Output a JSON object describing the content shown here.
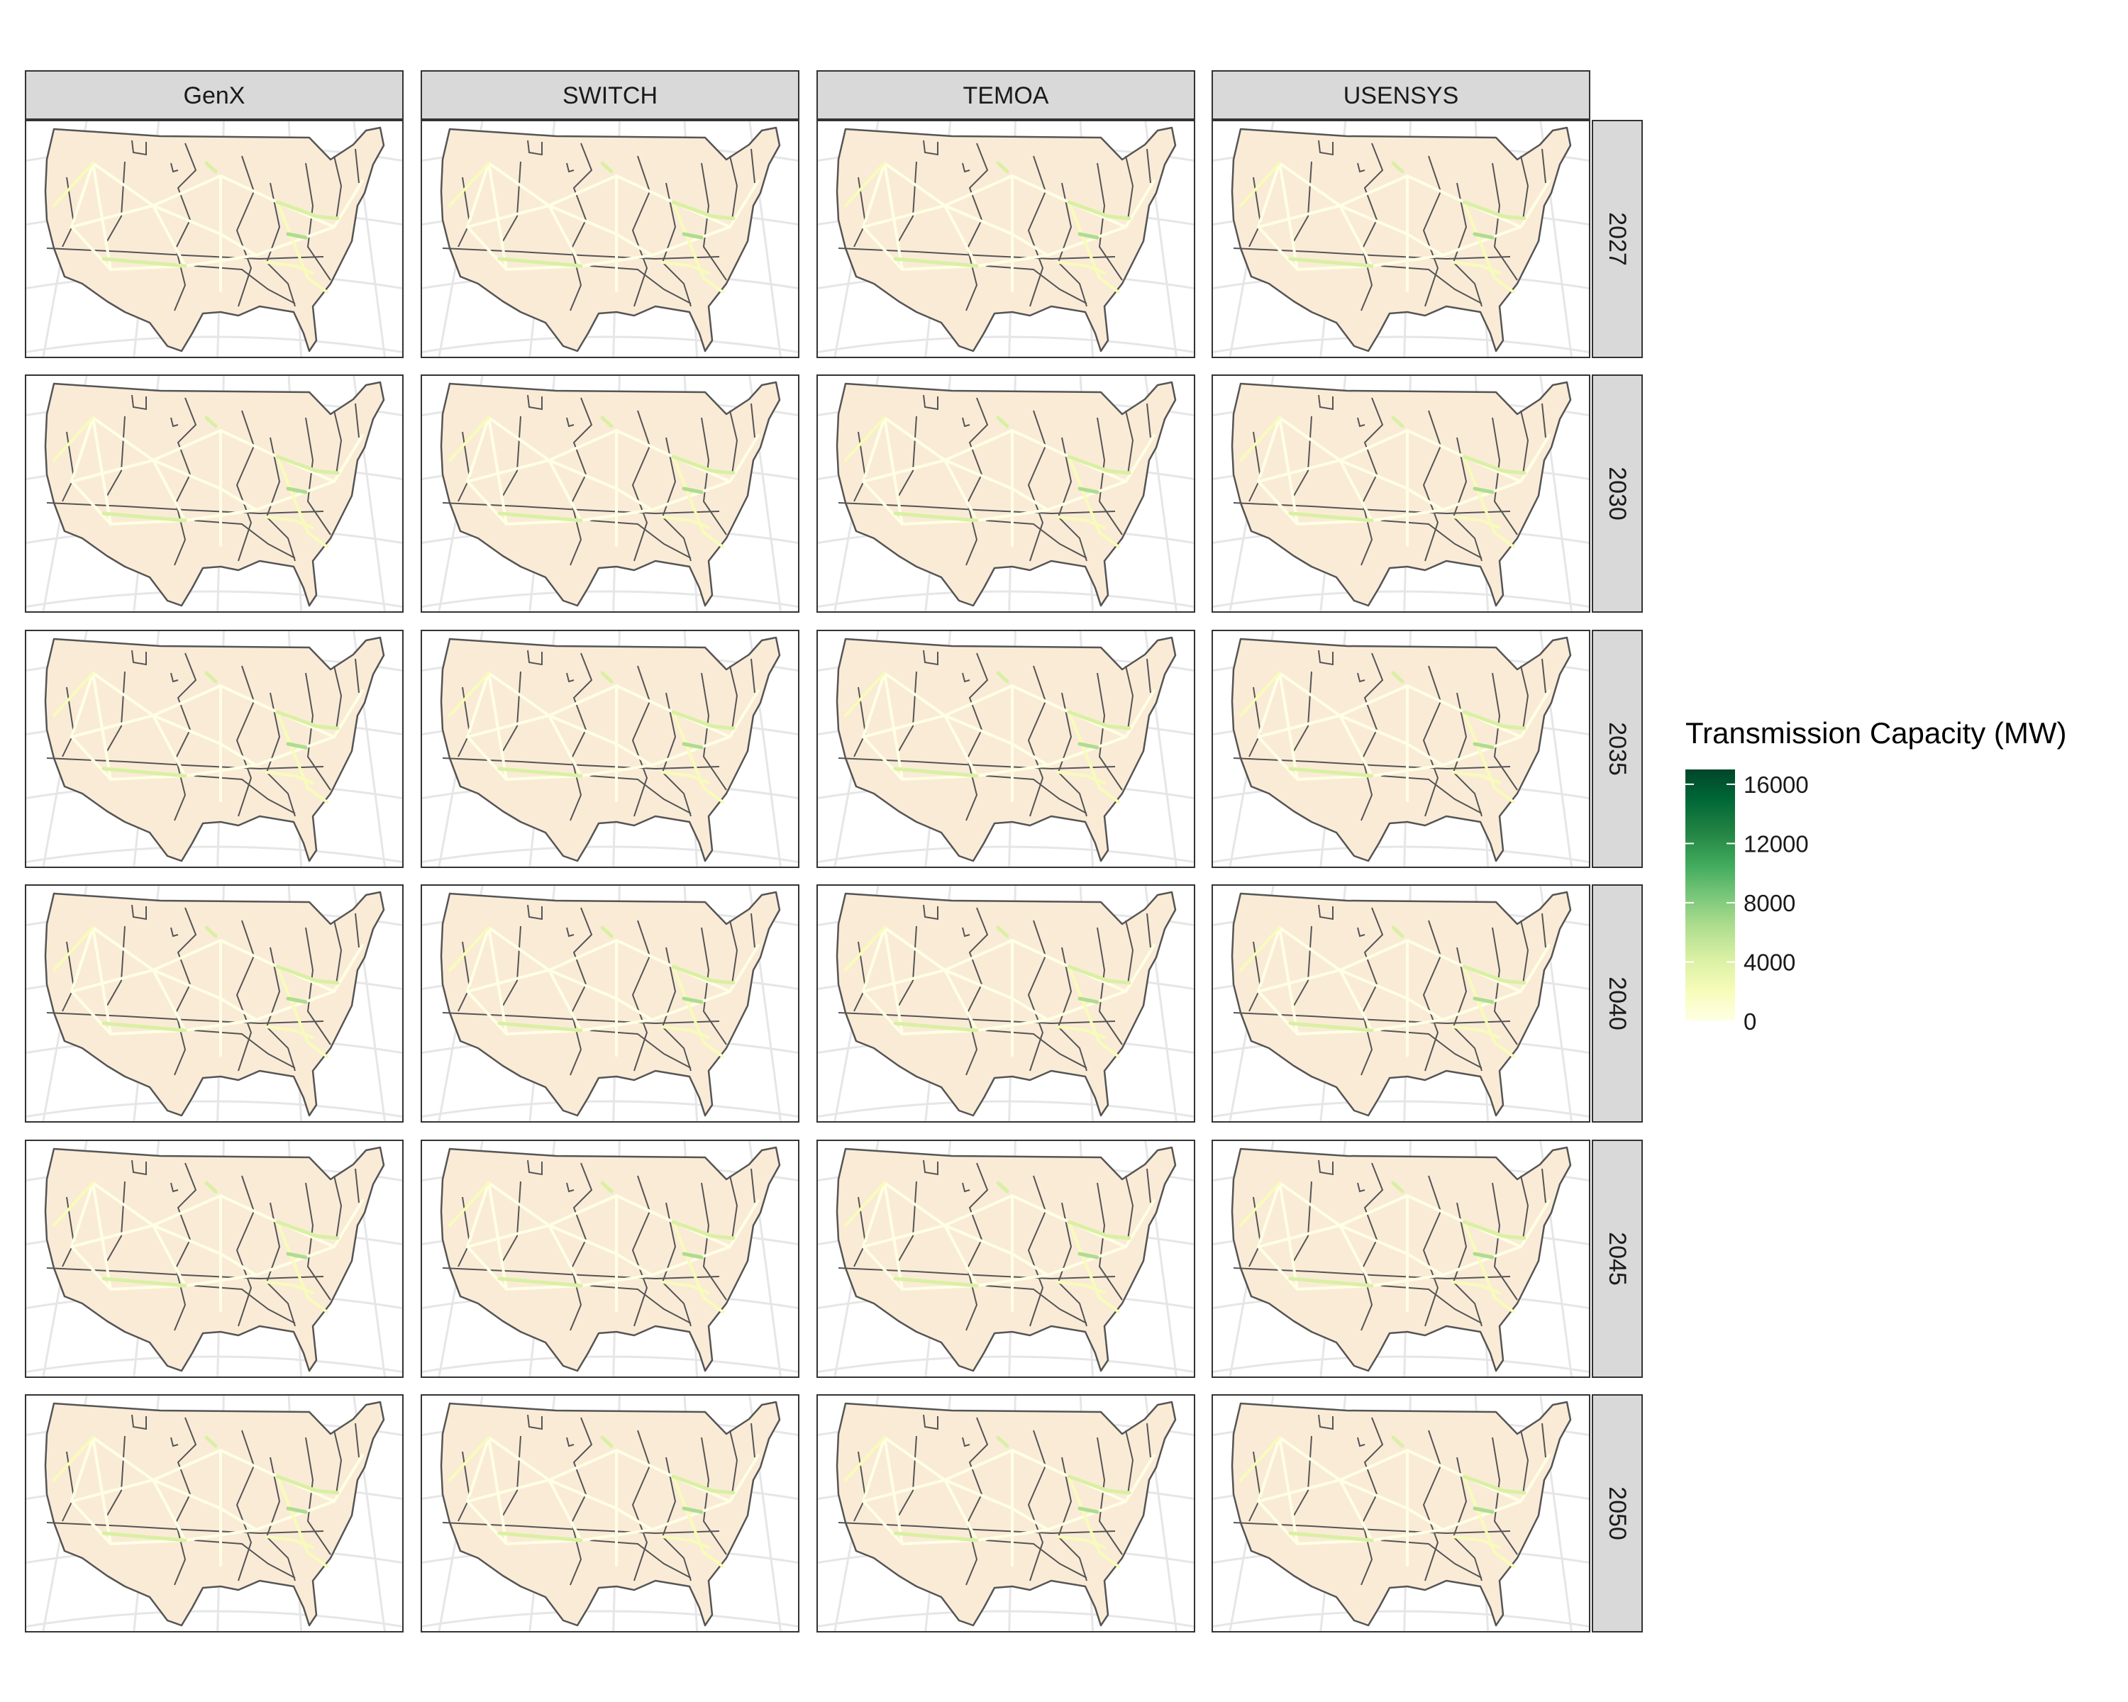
{
  "figure": {
    "columns": [
      "GenX",
      "SWITCH",
      "TEMOA",
      "USENSYS"
    ],
    "rows": [
      "2027",
      "2030",
      "2035",
      "2040",
      "2045",
      "2050"
    ]
  },
  "legend": {
    "title": "Transmission Capacity (MW)",
    "ticks": [
      "16000",
      "12000",
      "8000",
      "4000",
      "0"
    ],
    "tick_values": [
      16000,
      12000,
      8000,
      4000,
      0
    ],
    "min": 0,
    "max": 17000,
    "colors": [
      "#ffffe5",
      "#f7fcb9",
      "#d9f0a3",
      "#addd8e",
      "#78c679",
      "#41ab5d",
      "#238443",
      "#006837",
      "#004529"
    ]
  },
  "colors": {
    "land": "#faebd7",
    "border": "#555555",
    "strip_fill": "#d9d9d9",
    "graticule": "#e6e6e6"
  }
}
